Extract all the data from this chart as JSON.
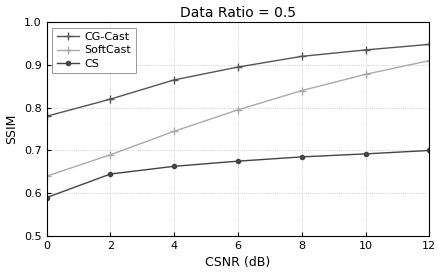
{
  "title": "Data Ratio = 0.5",
  "xlabel": "CSNR (dB)",
  "ylabel": "SSIM",
  "xlim": [
    0,
    12
  ],
  "ylim": [
    0.5,
    1.0
  ],
  "xticks": [
    0,
    2,
    4,
    6,
    8,
    10,
    12
  ],
  "yticks": [
    0.5,
    0.6,
    0.7,
    0.8,
    0.9,
    1.0
  ],
  "series": [
    {
      "label": "CG-Cast",
      "x": [
        0,
        2,
        4,
        6,
        8,
        10,
        12
      ],
      "y": [
        0.78,
        0.82,
        0.865,
        0.895,
        0.92,
        0.935,
        0.948
      ],
      "color": "#555555",
      "marker": "+",
      "markersize": 6,
      "linewidth": 1.0
    },
    {
      "label": "SoftCast",
      "x": [
        0,
        2,
        4,
        6,
        8,
        10,
        12
      ],
      "y": [
        0.64,
        0.69,
        0.745,
        0.795,
        0.84,
        0.878,
        0.91
      ],
      "color": "#aaaaaa",
      "marker": "+",
      "markersize": 6,
      "linewidth": 1.0
    },
    {
      "label": "CS",
      "x": [
        0,
        2,
        4,
        6,
        8,
        10,
        12
      ],
      "y": [
        0.59,
        0.645,
        0.663,
        0.675,
        0.685,
        0.692,
        0.7
      ],
      "color": "#444444",
      "marker": "o",
      "markersize": 3,
      "linewidth": 1.0
    }
  ],
  "background_color": "#ffffff",
  "grid_color": "#bbbbbb",
  "title_fontsize": 10,
  "label_fontsize": 9,
  "tick_fontsize": 8,
  "legend_fontsize": 8
}
